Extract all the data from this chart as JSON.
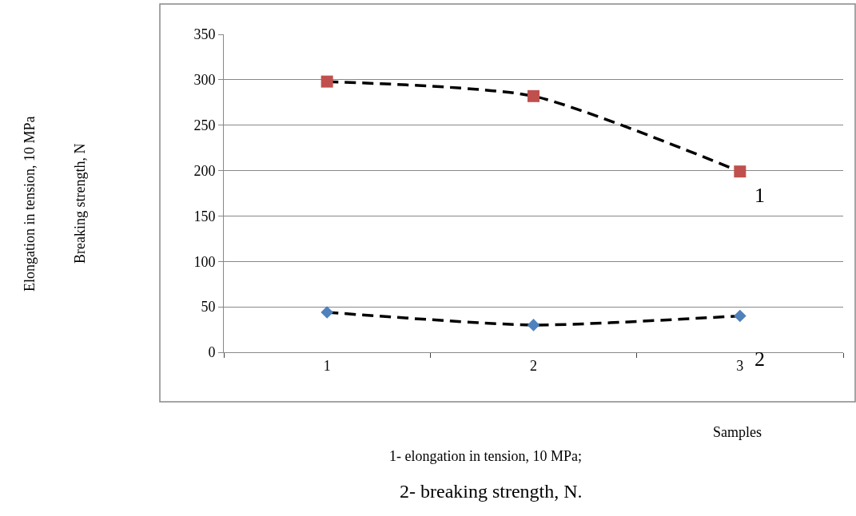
{
  "chart_data": {
    "type": "line",
    "ylabel": "Elongation in tension, 10 MPa\nBreaking strength, N",
    "categories": [
      "1",
      "2",
      "3"
    ],
    "series": [
      {
        "name": "1",
        "color": "#c0504d",
        "marker": "square",
        "values": [
          298,
          282,
          199
        ]
      },
      {
        "name": "2",
        "color": "#4f81bd",
        "marker": "diamond",
        "values": [
          44,
          30,
          40
        ]
      }
    ],
    "line_style": "dashed",
    "ylim": [
      0,
      350
    ],
    "yticks": [
      0,
      50,
      100,
      150,
      200,
      250,
      300,
      350
    ],
    "grid": "y",
    "legend": false,
    "annotations": [
      "Samples",
      "1- elongation in tension, 10 MPa;",
      "2- breaking strength, N."
    ]
  }
}
